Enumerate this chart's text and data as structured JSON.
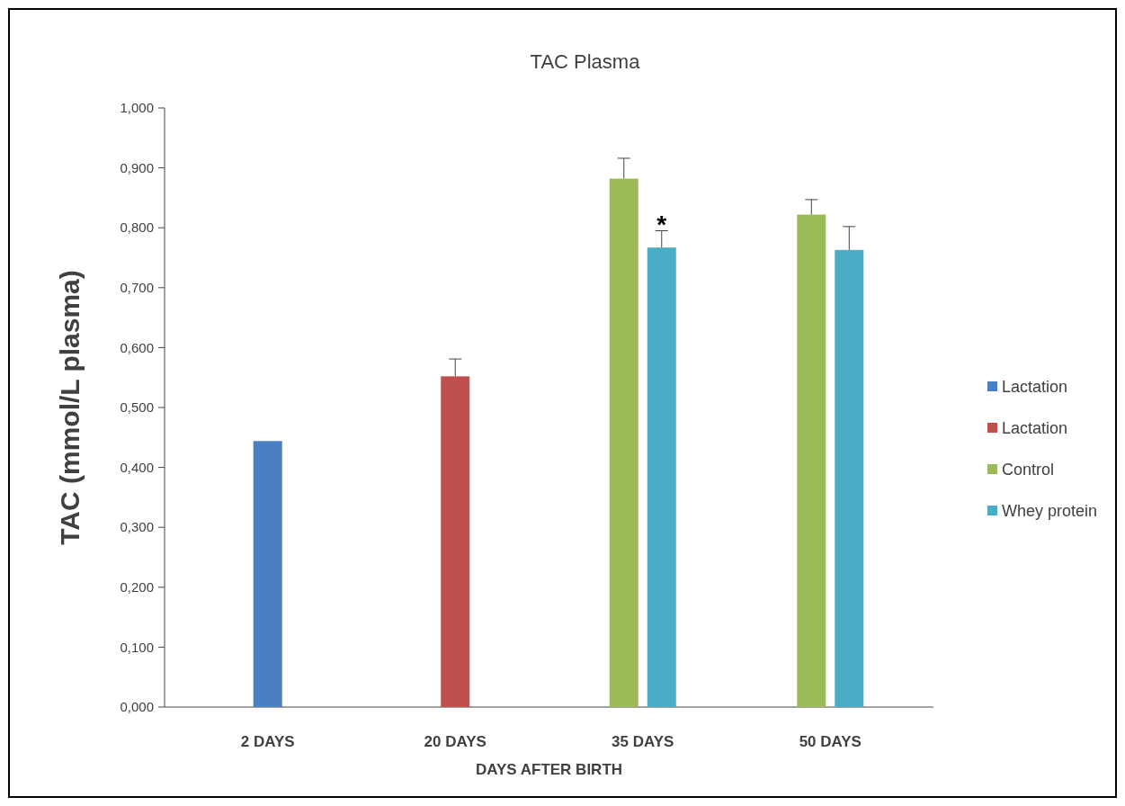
{
  "chart_data": {
    "type": "bar",
    "title": "TAC Plasma",
    "xlabel": "DAYS AFTER BIRTH",
    "ylabel": "TAC (mmol/L plasma)",
    "categories": [
      "2 DAYS",
      "20 DAYS",
      "35 DAYS",
      "50 DAYS"
    ],
    "series": [
      {
        "name": "Lactation",
        "color": "#4a7fc1",
        "values": [
          0.444,
          null,
          null,
          null
        ],
        "errors": [
          null,
          null,
          null,
          null
        ]
      },
      {
        "name": "Lactation",
        "color": "#c0504d",
        "values": [
          null,
          0.552,
          null,
          null
        ],
        "errors": [
          null,
          0.029,
          null,
          null
        ]
      },
      {
        "name": "Control",
        "color": "#9bbb59",
        "values": [
          null,
          null,
          0.882,
          0.822
        ],
        "errors": [
          null,
          null,
          0.034,
          0.025
        ]
      },
      {
        "name": "Whey protein",
        "color": "#4bacc6",
        "values": [
          null,
          null,
          0.767,
          0.763
        ],
        "errors": [
          null,
          null,
          0.028,
          0.039
        ]
      }
    ],
    "ylim": [
      0,
      1
    ],
    "yticks": [
      {
        "value": 0,
        "label": "0,000"
      },
      {
        "value": 0.1,
        "label": "0,100"
      },
      {
        "value": 0.2,
        "label": "0,200"
      },
      {
        "value": 0.3,
        "label": "0,300"
      },
      {
        "value": 0.4,
        "label": "0,400"
      },
      {
        "value": 0.5,
        "label": "0,500"
      },
      {
        "value": 0.6,
        "label": "0,600"
      },
      {
        "value": 0.7,
        "label": "0,700"
      },
      {
        "value": 0.8,
        "label": "0,800"
      },
      {
        "value": 0.9,
        "label": "0,900"
      },
      {
        "value": 1,
        "label": "1,000"
      }
    ],
    "annotations": [
      {
        "text": "*",
        "x": "35 DAYS",
        "y": 0.82
      }
    ],
    "legend": "right"
  }
}
